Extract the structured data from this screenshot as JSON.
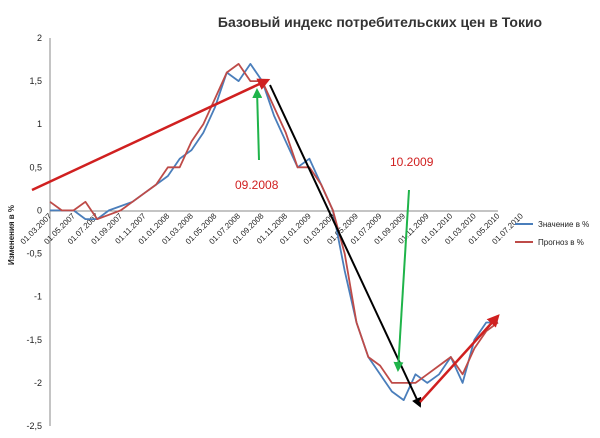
{
  "chart_data": {
    "type": "line",
    "title": "Базовый индекс потребительских цен в Токио",
    "ylabel": "Изменения в %",
    "ylim": [
      -2.5,
      2
    ],
    "yticks": [
      2,
      1.5,
      1,
      0.5,
      0,
      -0.5,
      -1,
      -1.5,
      -2,
      -2.5
    ],
    "ytick_labels": [
      "2",
      "1,5",
      "1",
      "0,5",
      "0",
      "-0,5",
      "-1",
      "-1,5",
      "-2",
      "-2,5"
    ],
    "x_tick_labels": [
      "01.03.2007",
      "01.05.2007",
      "01.07.2007",
      "01.09.2007",
      "01.11.2007",
      "01.01.2008",
      "01.03.2008",
      "01.05.2008",
      "01.07.2008",
      "01.09.2008",
      "01.11.2008",
      "01.01.2009",
      "01.03.2009",
      "01.05.2009",
      "01.07.2009",
      "01.09.2009",
      "01.11.2009",
      "01.01.2010",
      "01.03.2010",
      "01.05.2010",
      "01.07.2010"
    ],
    "x_tick_step": 2,
    "series": [
      {
        "name": "Значение в %",
        "color": "#4a7ebb",
        "values": [
          0.0,
          0.0,
          0.0,
          -0.1,
          -0.1,
          0.0,
          0.05,
          0.1,
          0.2,
          0.3,
          0.4,
          0.6,
          0.7,
          0.9,
          1.2,
          1.6,
          1.5,
          1.7,
          1.5,
          1.1,
          0.8,
          0.5,
          0.6,
          0.3,
          0.0,
          -0.7,
          -1.3,
          -1.7,
          -1.9,
          -2.1,
          -2.2,
          -1.9,
          -2.0,
          -1.9,
          -1.7,
          -2.0,
          -1.5,
          -1.3,
          -1.3
        ]
      },
      {
        "name": "Прогноз в %",
        "color": "#be4b48",
        "values": [
          0.1,
          0.0,
          0.0,
          0.1,
          -0.1,
          -0.05,
          0.0,
          0.1,
          0.2,
          0.3,
          0.5,
          0.5,
          0.8,
          1.0,
          1.3,
          1.6,
          1.7,
          1.5,
          1.5,
          1.2,
          0.9,
          0.5,
          0.5,
          0.3,
          0.0,
          -0.5,
          -1.3,
          -1.7,
          -1.8,
          -2.0,
          -2.0,
          -2.0,
          -1.9,
          -1.8,
          -1.7,
          -1.9,
          -1.6,
          -1.4,
          -1.3
        ]
      }
    ],
    "grid": false,
    "legend_position": "right",
    "annotations": [
      {
        "text": "09.2008",
        "color": "#d02020"
      },
      {
        "text": "10.2009",
        "color": "#d02020"
      }
    ],
    "arrow_colors": {
      "trend_up": "#d02020",
      "decline": "#000000",
      "pointer": "#1fb44a"
    }
  }
}
